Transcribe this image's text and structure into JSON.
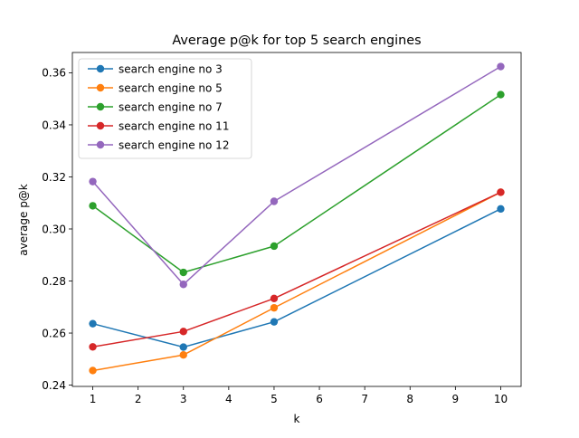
{
  "chart_data": {
    "type": "line",
    "title": "Average p@k for top 5 search engines",
    "xlabel": "k",
    "ylabel": "average p@k",
    "x": [
      1,
      3,
      5,
      10
    ],
    "xlim": [
      0.55,
      10.45
    ],
    "ylim": [
      0.2395,
      0.3678
    ],
    "xticks": [
      1,
      2,
      3,
      4,
      5,
      6,
      7,
      8,
      9,
      10
    ],
    "yticks": [
      0.24,
      0.26,
      0.28,
      0.3,
      0.32,
      0.34,
      0.36
    ],
    "ytick_labels": [
      "0.24",
      "0.26",
      "0.28",
      "0.30",
      "0.32",
      "0.34",
      "0.36"
    ],
    "grid": false,
    "legend_position": "top-left",
    "series": [
      {
        "name": "search engine no 3",
        "color": "#1f77b4",
        "values": [
          0.2636,
          0.2546,
          0.2643,
          0.3077
        ]
      },
      {
        "name": "search engine no 5",
        "color": "#ff7f0e",
        "values": [
          0.2456,
          0.2516,
          0.2697,
          0.3141
        ]
      },
      {
        "name": "search engine no 7",
        "color": "#2ca02c",
        "values": [
          0.3089,
          0.2833,
          0.2934,
          0.3516
        ]
      },
      {
        "name": "search engine no 11",
        "color": "#d62728",
        "values": [
          0.2547,
          0.2606,
          0.2733,
          0.3141
        ]
      },
      {
        "name": "search engine no 12",
        "color": "#9467bd",
        "values": [
          0.3182,
          0.2787,
          0.3106,
          0.3624
        ]
      }
    ]
  }
}
